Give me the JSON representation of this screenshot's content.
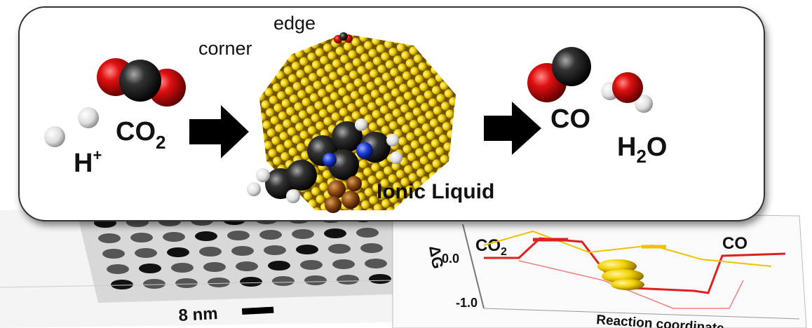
{
  "labels": {
    "edge": "edge",
    "corner": "corner",
    "ionic_liquid": "Ionic Liquid"
  },
  "reactants": {
    "proton": {
      "base": "H",
      "sup": "+"
    },
    "co2": {
      "base": "CO",
      "sub": "2"
    }
  },
  "products": {
    "co": "CO",
    "water": {
      "h": "H",
      "sub": "2",
      "o": "O"
    }
  },
  "micrograph": {
    "scale_bar": "8 nm"
  },
  "energy_plot": {
    "y_label": "ΔG",
    "ticks": [
      "0.0",
      "-1.0"
    ],
    "start": {
      "base": "CO",
      "sub": "2"
    },
    "end": "CO",
    "x_label": "Reaction coordinate"
  }
}
